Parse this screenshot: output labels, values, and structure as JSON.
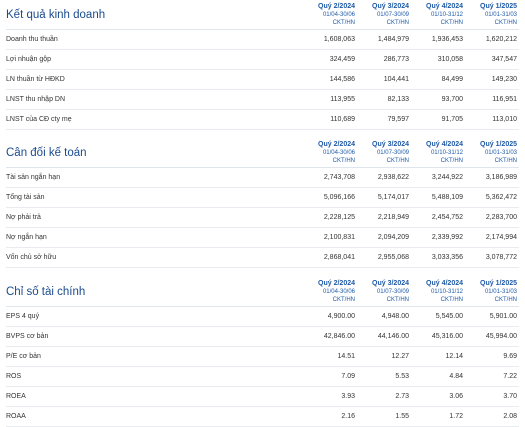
{
  "sections": [
    {
      "title": "Kết quả kinh doanh",
      "columns": [
        {
          "quarter": "Quý 2/2024",
          "range": "01/04-30/06",
          "unit": "CKT/HN"
        },
        {
          "quarter": "Quý 3/2024",
          "range": "01/07-30/09",
          "unit": "CKT/HN"
        },
        {
          "quarter": "Quý 4/2024",
          "range": "01/10-31/12",
          "unit": "CKT/HN"
        },
        {
          "quarter": "Quý 1/2025",
          "range": "01/01-31/03",
          "unit": "CKT/HN"
        }
      ],
      "rows": [
        {
          "label": "Doanh thu thuần",
          "values": [
            "1,608,063",
            "1,484,979",
            "1,936,453",
            "1,620,212"
          ]
        },
        {
          "label": "Lợi nhuận gộp",
          "values": [
            "324,459",
            "286,773",
            "310,058",
            "347,547"
          ]
        },
        {
          "label": "LN thuần từ HĐKD",
          "values": [
            "144,586",
            "104,441",
            "84,499",
            "149,230"
          ]
        },
        {
          "label": "LNST thu nhập DN",
          "values": [
            "113,955",
            "82,133",
            "93,700",
            "116,951"
          ]
        },
        {
          "label": "LNST của CĐ cty mẹ",
          "values": [
            "110,689",
            "79,597",
            "91,705",
            "113,010"
          ]
        }
      ]
    },
    {
      "title": "Cân đối kế toán",
      "columns": [
        {
          "quarter": "Quý 2/2024",
          "range": "01/04-30/06",
          "unit": "CKT/HN"
        },
        {
          "quarter": "Quý 3/2024",
          "range": "01/07-30/09",
          "unit": "CKT/HN"
        },
        {
          "quarter": "Quý 4/2024",
          "range": "01/10-31/12",
          "unit": "CKT/HN"
        },
        {
          "quarter": "Quý 1/2025",
          "range": "01/01-31/03",
          "unit": "CKT/HN"
        }
      ],
      "rows": [
        {
          "label": "Tài sản ngắn hạn",
          "values": [
            "2,743,708",
            "2,938,622",
            "3,244,922",
            "3,186,989"
          ]
        },
        {
          "label": "Tổng tài sản",
          "values": [
            "5,096,166",
            "5,174,017",
            "5,488,109",
            "5,362,472"
          ]
        },
        {
          "label": "Nợ phải trả",
          "values": [
            "2,228,125",
            "2,218,949",
            "2,454,752",
            "2,283,700"
          ]
        },
        {
          "label": "Nợ ngắn hạn",
          "values": [
            "2,100,831",
            "2,094,209",
            "2,339,992",
            "2,174,994"
          ]
        },
        {
          "label": "Vốn chủ sở hữu",
          "values": [
            "2,868,041",
            "2,955,068",
            "3,033,356",
            "3,078,772"
          ]
        }
      ]
    },
    {
      "title": "Chỉ số tài chính",
      "columns": [
        {
          "quarter": "Quý 2/2024",
          "range": "01/04-30/06",
          "unit": "CKT/HN"
        },
        {
          "quarter": "Quý 3/2024",
          "range": "01/07-30/09",
          "unit": "CKT/HN"
        },
        {
          "quarter": "Quý 4/2024",
          "range": "01/10-31/12",
          "unit": "CKT/HN"
        },
        {
          "quarter": "Quý 1/2025",
          "range": "01/01-31/03",
          "unit": "CKT/HN"
        }
      ],
      "rows": [
        {
          "label": "EPS 4 quý",
          "values": [
            "4,900.00",
            "4,948.00",
            "5,545.00",
            "5,901.00"
          ]
        },
        {
          "label": "BVPS cơ bản",
          "values": [
            "42,846.00",
            "44,146.00",
            "45,316.00",
            "45,994.00"
          ]
        },
        {
          "label": "P/E cơ bản",
          "values": [
            "14.51",
            "12.27",
            "12.14",
            "9.69"
          ]
        },
        {
          "label": "ROS",
          "values": [
            "7.09",
            "5.53",
            "4.84",
            "7.22"
          ]
        },
        {
          "label": "ROEA",
          "values": [
            "3.93",
            "2.73",
            "3.06",
            "3.70"
          ]
        },
        {
          "label": "ROAA",
          "values": [
            "2.16",
            "1.55",
            "1.72",
            "2.08"
          ]
        }
      ]
    }
  ]
}
